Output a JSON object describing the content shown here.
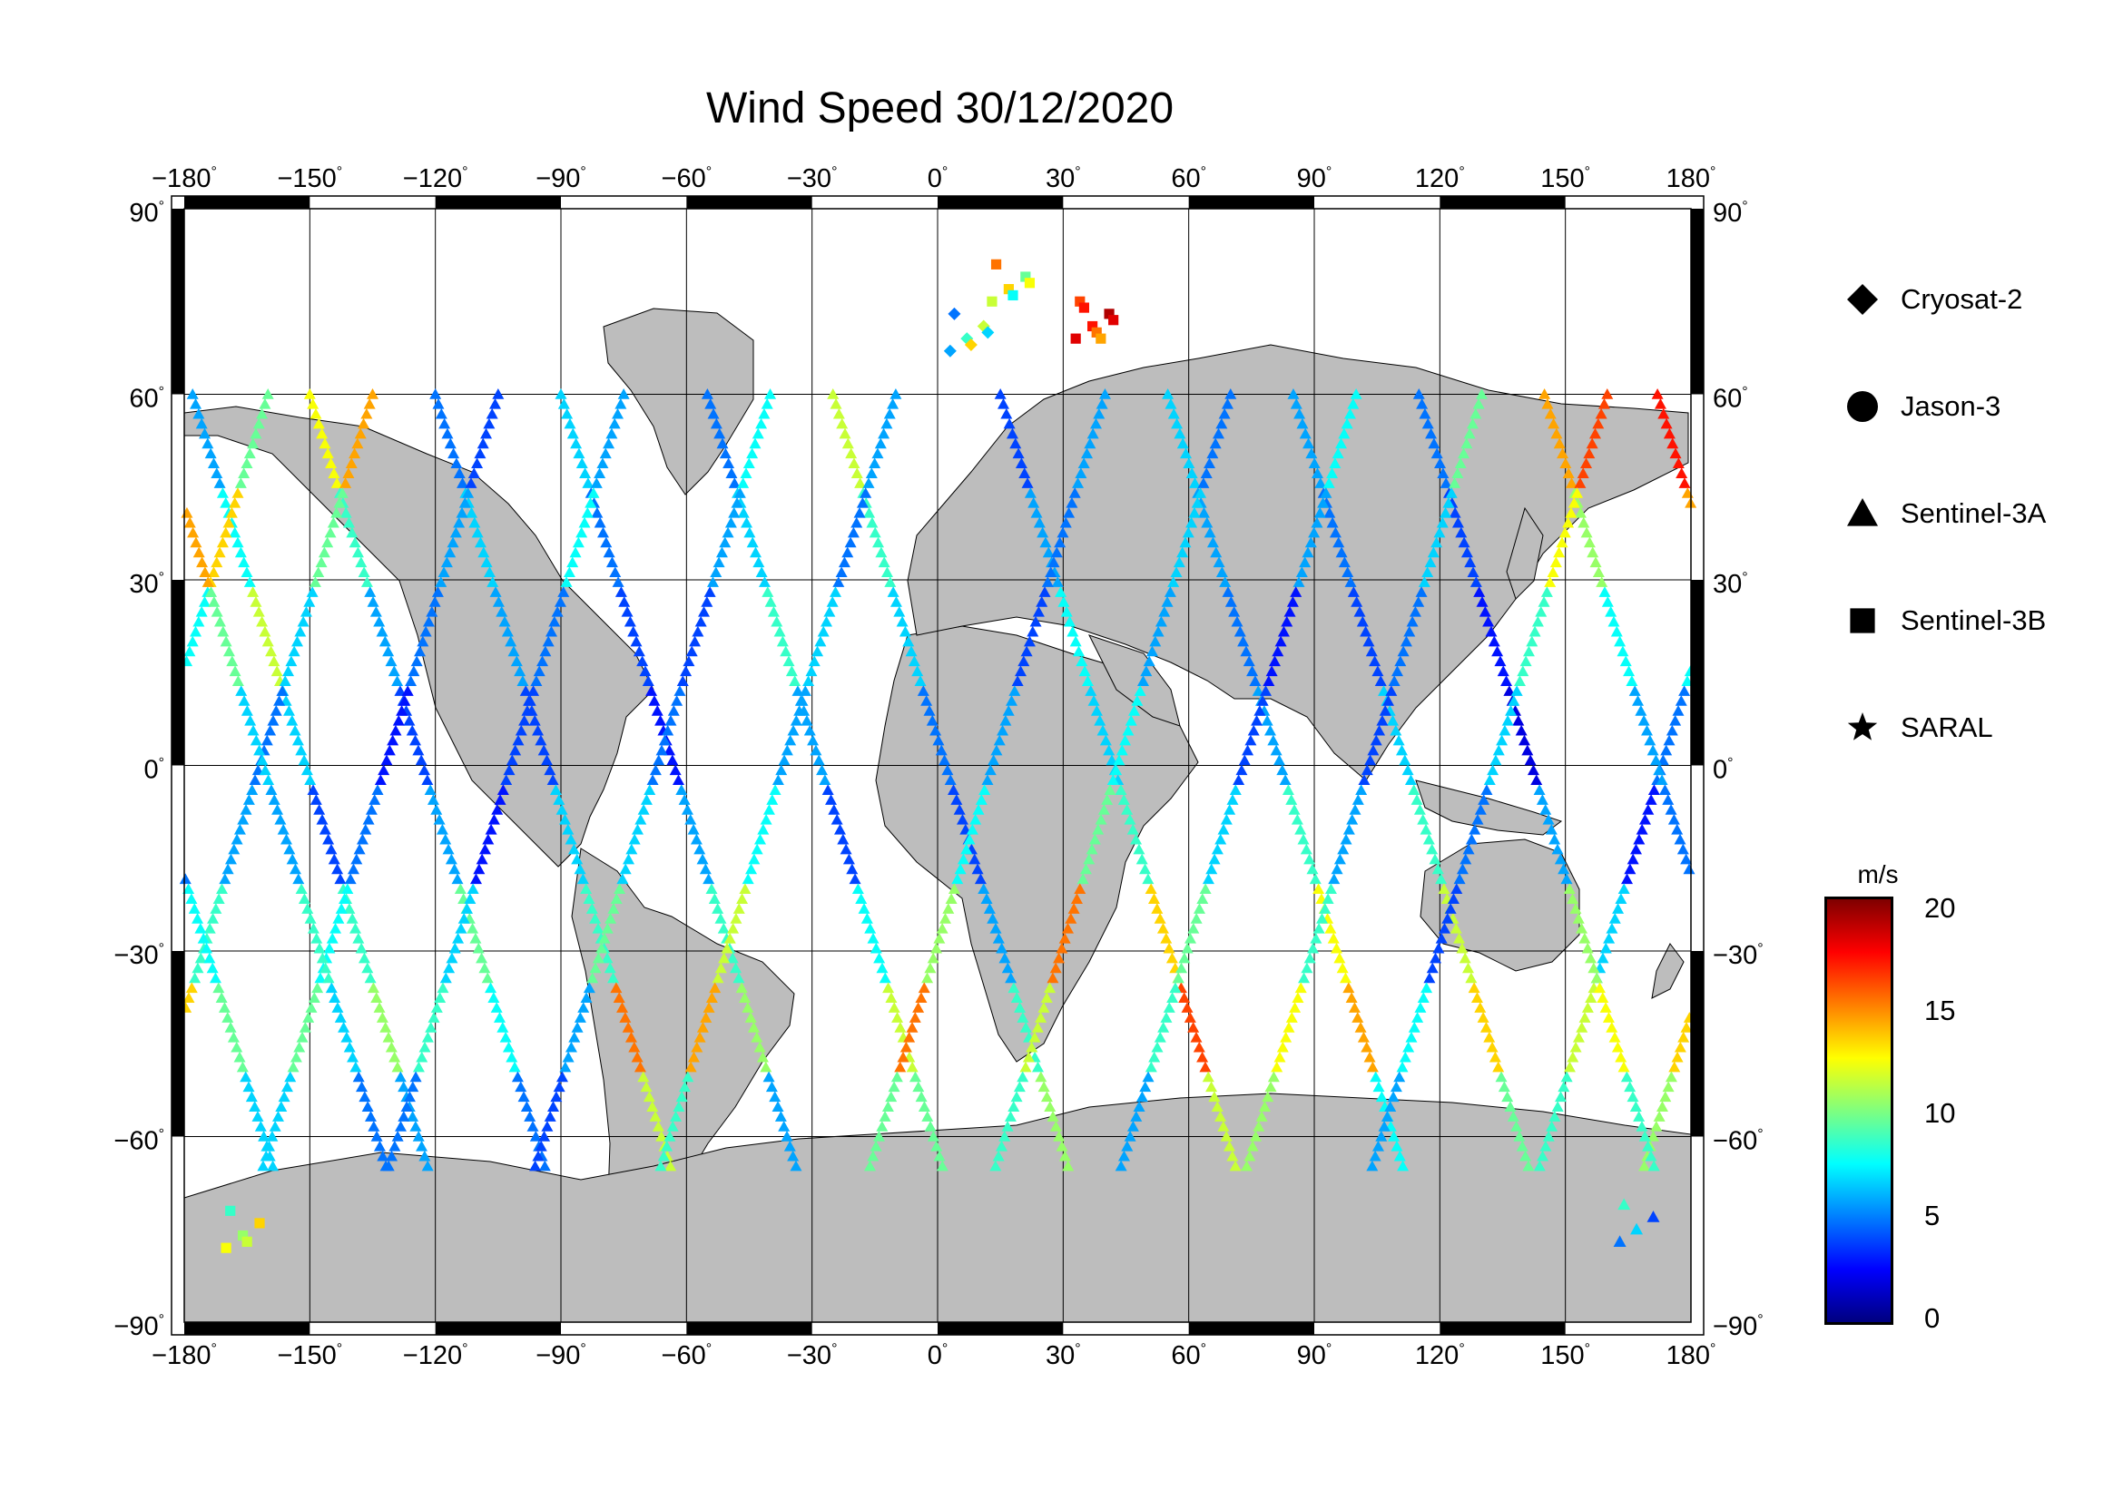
{
  "title": "Wind Speed 30/12/2020",
  "map": {
    "projection": "equirectangular",
    "lon_range": [
      -180,
      180
    ],
    "lat_range": [
      -90,
      90
    ],
    "lon_ticks": [
      "−180",
      "−150",
      "−120",
      "−90",
      "−60",
      "−30",
      "0",
      "30",
      "60",
      "90",
      "120",
      "150",
      "180"
    ],
    "lat_ticks": [
      "90",
      "60",
      "30",
      "0",
      "−30",
      "−60",
      "−90"
    ],
    "degree_symbol": "°",
    "land_color": "#bdbdbd",
    "ocean_color": "#ffffff",
    "grid": true
  },
  "legend": {
    "items": [
      {
        "label": "Cryosat-2",
        "marker": "diamond"
      },
      {
        "label": "Jason-3",
        "marker": "circle"
      },
      {
        "label": "Sentinel-3A",
        "marker": "triangle"
      },
      {
        "label": "Sentinel-3B",
        "marker": "square"
      },
      {
        "label": "SARAL",
        "marker": "star"
      }
    ]
  },
  "colorbar": {
    "unit": "m/s",
    "range": [
      0,
      21
    ],
    "ticks": [
      "20",
      "15",
      "10",
      "5",
      "0"
    ],
    "colormap": [
      "#00007f",
      "#0000ff",
      "#007fff",
      "#00ffff",
      "#7fff7f",
      "#ffff00",
      "#ff7f00",
      "#ff0000",
      "#7f0000"
    ]
  },
  "chart_data": {
    "type": "scatter",
    "title": "Wind Speed 30/12/2020",
    "value_unit": "m/s",
    "value_range": [
      0,
      21
    ],
    "x_range": [
      -180,
      180
    ],
    "y_range": [
      -90,
      90
    ],
    "tracks": [
      {
        "marker": "triangle",
        "lon0": -178,
        "dir": 1,
        "winds": [
          6,
          8,
          12,
          7,
          4,
          9,
          11,
          6
        ]
      },
      {
        "marker": "triangle",
        "lon0": -160,
        "dir": -1,
        "winds": [
          10,
          14,
          8,
          5,
          3,
          7,
          12,
          9
        ]
      },
      {
        "marker": "triangle",
        "lon0": -150,
        "dir": 1,
        "winds": [
          13,
          9,
          6,
          4,
          6,
          10,
          8,
          5
        ]
      },
      {
        "marker": "triangle",
        "lon0": -135,
        "dir": -1,
        "winds": [
          15,
          10,
          7,
          5,
          6,
          9,
          14,
          11
        ]
      },
      {
        "marker": "triangle",
        "lon0": -120,
        "dir": 1,
        "winds": [
          5,
          7,
          6,
          4,
          7,
          9,
          16,
          12
        ]
      },
      {
        "marker": "triangle",
        "lon0": -105,
        "dir": -1,
        "winds": [
          4,
          6,
          5,
          3,
          5,
          8,
          10,
          7
        ]
      },
      {
        "marker": "triangle",
        "lon0": -90,
        "dir": 1,
        "winds": [
          7,
          5,
          4,
          3,
          6,
          9,
          11,
          6
        ]
      },
      {
        "marker": "triangle",
        "lon0": -75,
        "dir": -1,
        "winds": [
          6,
          8,
          5,
          4,
          3,
          7,
          9,
          5
        ]
      },
      {
        "marker": "triangle",
        "lon0": -55,
        "dir": 1,
        "winds": [
          5,
          7,
          9,
          6,
          4,
          8,
          12,
          10
        ]
      },
      {
        "marker": "triangle",
        "lon0": -40,
        "dir": -1,
        "winds": [
          8,
          6,
          4,
          5,
          7,
          10,
          6,
          4
        ]
      },
      {
        "marker": "triangle",
        "lon0": -25,
        "dir": 1,
        "winds": [
          12,
          9,
          7,
          5,
          4,
          6,
          9,
          11
        ]
      },
      {
        "marker": "triangle",
        "lon0": -10,
        "dir": -1,
        "winds": [
          6,
          5,
          7,
          6,
          8,
          12,
          15,
          9
        ]
      },
      {
        "marker": "triangle",
        "lon0": 15,
        "dir": 1,
        "winds": [
          4,
          6,
          8,
          7,
          9,
          14,
          17,
          12
        ]
      },
      {
        "marker": "triangle",
        "lon0": 40,
        "dir": -1,
        "winds": [
          6,
          5,
          4,
          6,
          8,
          11,
          16,
          10
        ]
      },
      {
        "marker": "triangle",
        "lon0": 55,
        "dir": 1,
        "winds": [
          7,
          6,
          5,
          6,
          9,
          13,
          15,
          8
        ]
      },
      {
        "marker": "triangle",
        "lon0": 70,
        "dir": -1,
        "winds": [
          5,
          7,
          6,
          8,
          10,
          16,
          12,
          9
        ]
      },
      {
        "marker": "triangle",
        "lon0": 85,
        "dir": 1,
        "winds": [
          6,
          5,
          4,
          7,
          9,
          12,
          14,
          10
        ]
      },
      {
        "marker": "triangle",
        "lon0": 100,
        "dir": -1,
        "winds": [
          8,
          6,
          3,
          4,
          7,
          10,
          9,
          6
        ]
      },
      {
        "marker": "triangle",
        "lon0": 115,
        "dir": 1,
        "winds": [
          5,
          4,
          3,
          2,
          6,
          11,
          13,
          9
        ]
      },
      {
        "marker": "triangle",
        "lon0": 130,
        "dir": -1,
        "winds": [
          10,
          7,
          5,
          4,
          6,
          9,
          13,
          11
        ]
      },
      {
        "marker": "triangle",
        "lon0": 145,
        "dir": 1,
        "winds": [
          15,
          11,
          8,
          6,
          5,
          8,
          10,
          7
        ]
      },
      {
        "marker": "triangle",
        "lon0": 160,
        "dir": -1,
        "winds": [
          17,
          13,
          9,
          7,
          5,
          4,
          8,
          6
        ]
      },
      {
        "marker": "triangle",
        "lon0": 172,
        "dir": 1,
        "winds": [
          18,
          15,
          10,
          7,
          6,
          9,
          7,
          5
        ]
      }
    ],
    "clusters": [
      {
        "marker": "square",
        "lon": 38,
        "lat": 72,
        "winds": [
          19,
          18,
          20,
          17,
          16,
          19,
          18,
          15
        ]
      },
      {
        "marker": "square",
        "lon": 18,
        "lat": 78,
        "winds": [
          12,
          14,
          10,
          16,
          8,
          13
        ]
      },
      {
        "marker": "square",
        "lon": -165,
        "lat": -75,
        "winds": [
          13,
          11,
          14,
          9,
          12
        ]
      },
      {
        "marker": "diamond",
        "lon": 8,
        "lat": 70,
        "winds": [
          6,
          9,
          12,
          5,
          14,
          7
        ]
      },
      {
        "marker": "triangle",
        "lon": 168,
        "lat": -74,
        "winds": [
          5,
          7,
          4,
          9
        ]
      }
    ]
  }
}
